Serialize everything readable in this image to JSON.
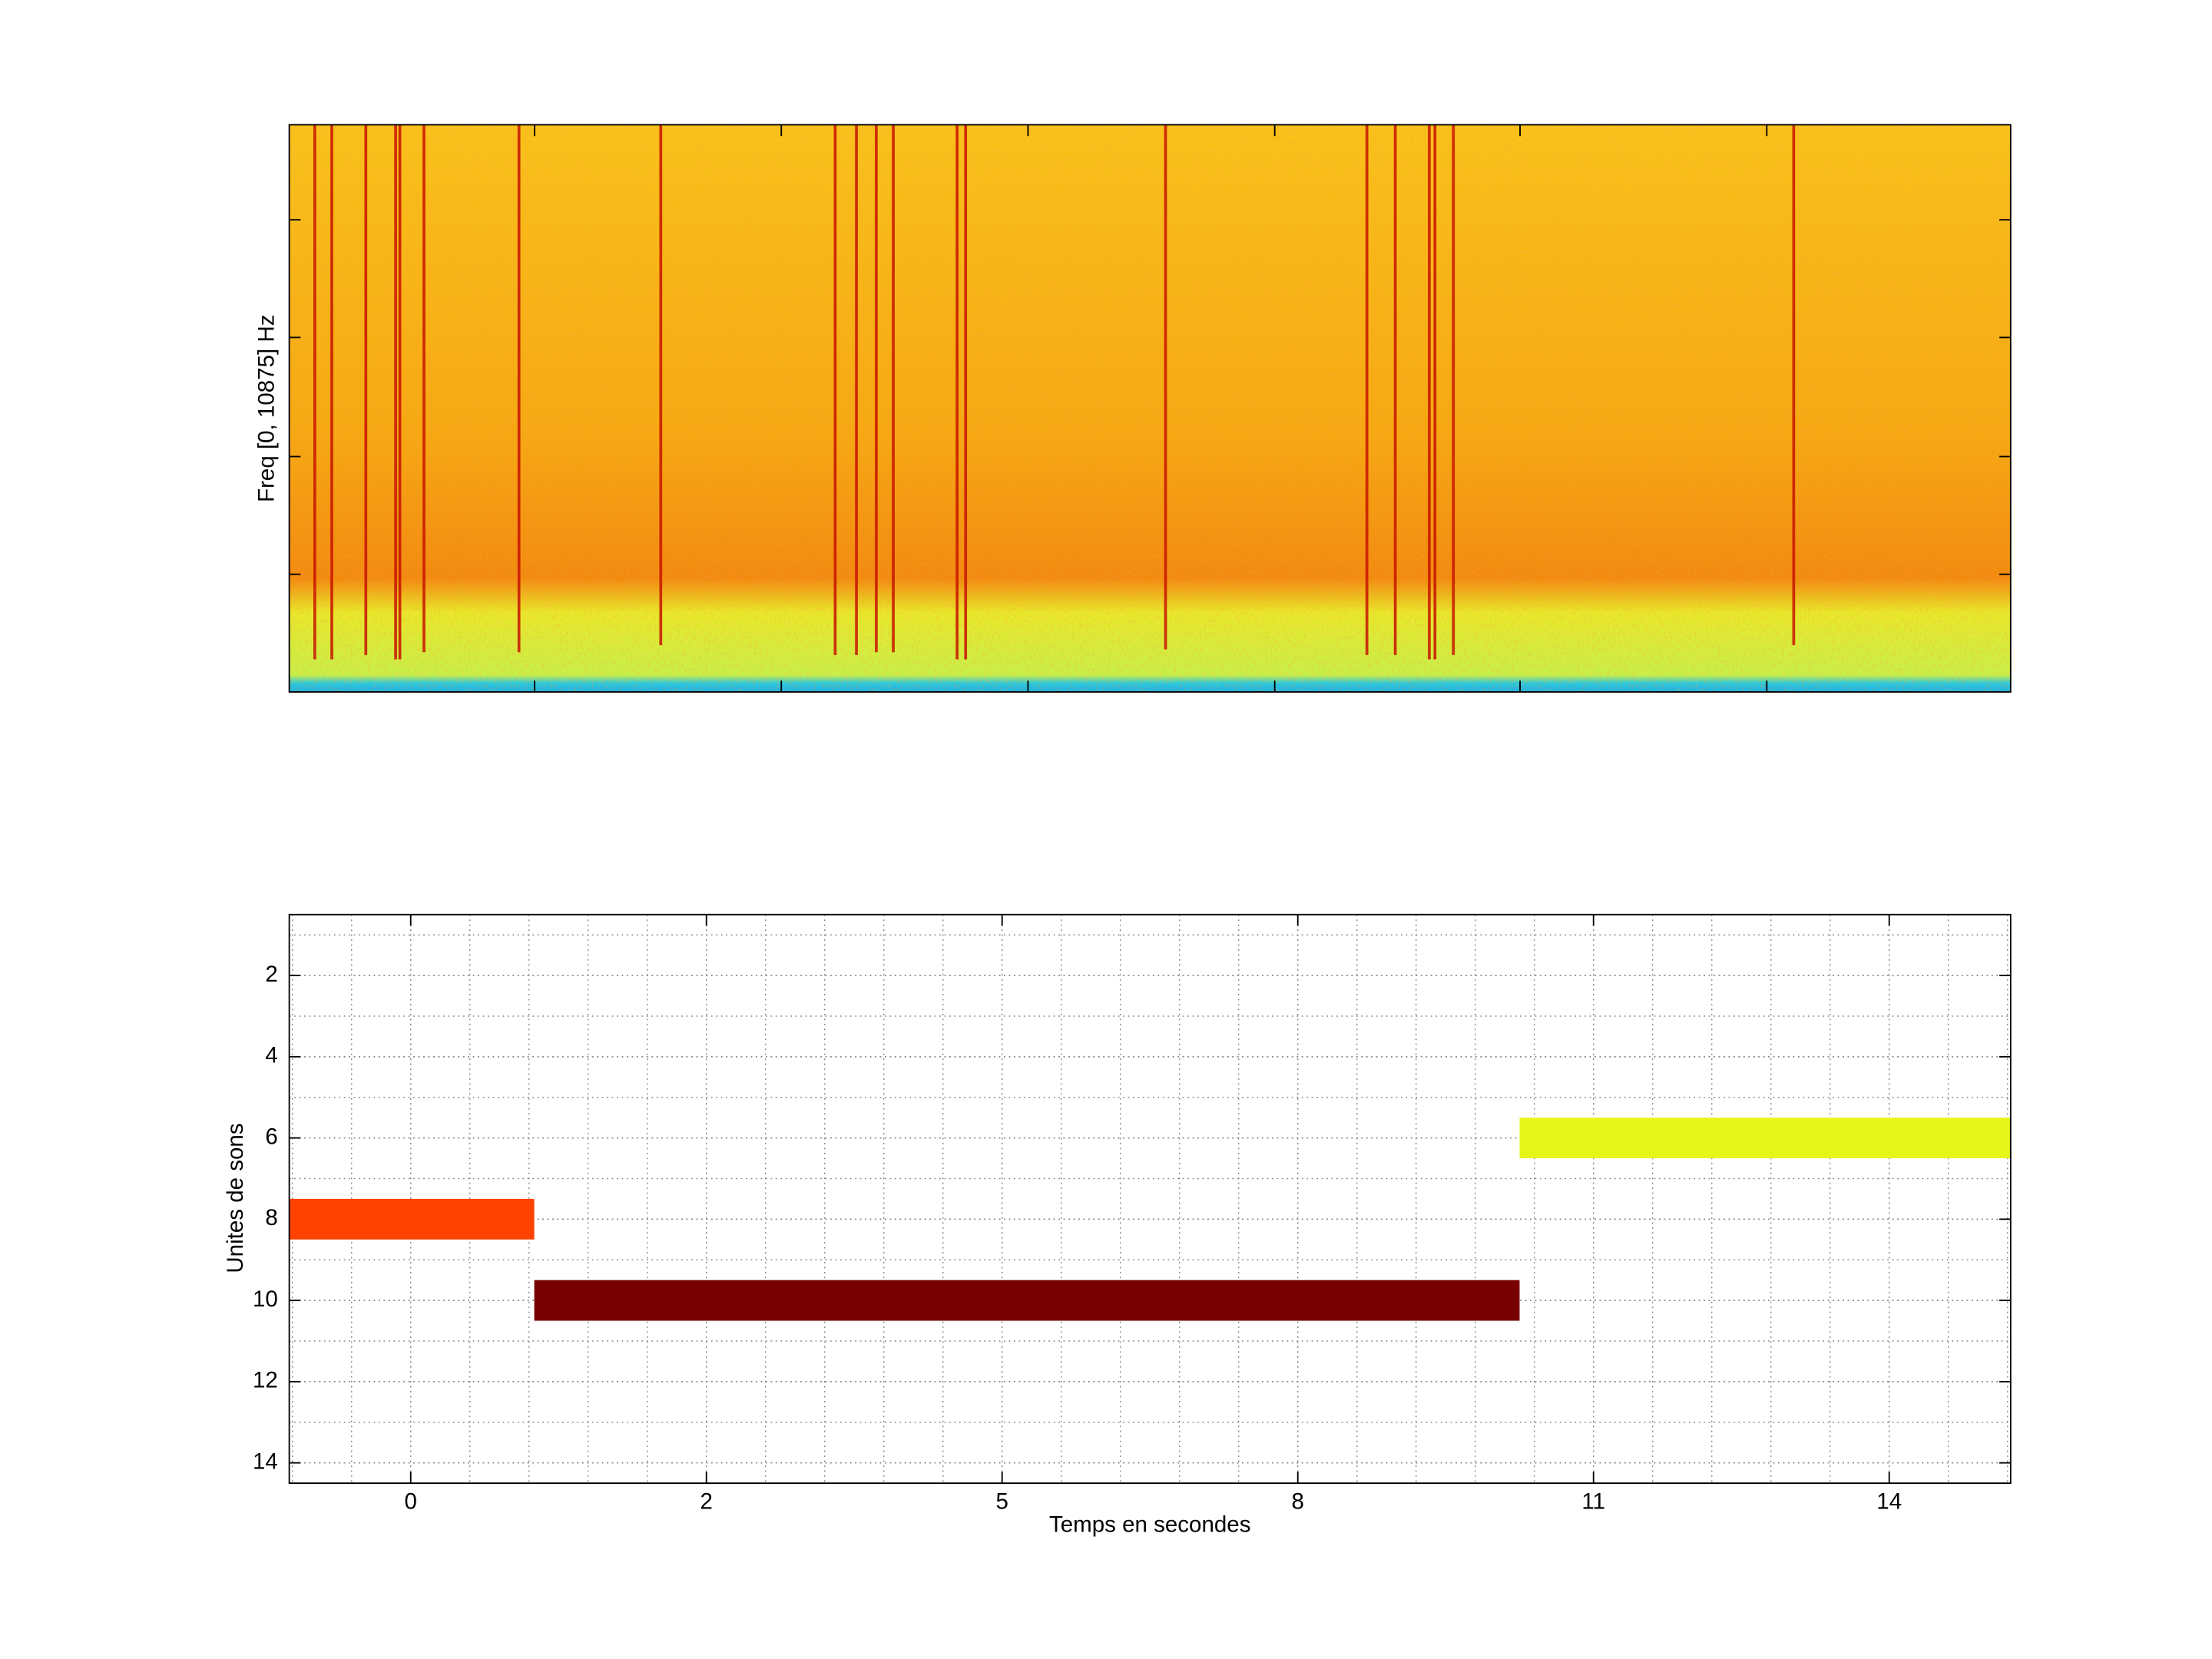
{
  "chart_data": [
    {
      "type": "spectrogram",
      "ylabel": "Freq [0, 10875] Hz"
    },
    {
      "type": "segments",
      "xlabel": "Temps en secondes",
      "ylabel": "Unites de sons",
      "xlim": [
        -1.55,
        14.75
      ],
      "ylim": [
        0.5,
        14.5
      ],
      "y_reversed": true,
      "xticks": [
        {
          "value": -0.4,
          "label": "0"
        },
        {
          "value": 2.4,
          "label": "2"
        },
        {
          "value": 5.2,
          "label": "5"
        },
        {
          "value": 8.0,
          "label": "8"
        },
        {
          "value": 10.8,
          "label": "11"
        },
        {
          "value": 13.6,
          "label": "14"
        }
      ],
      "yticks": [
        2,
        4,
        6,
        8,
        10,
        12,
        14
      ],
      "grid": true,
      "minor_grid": {
        "x": 5,
        "y": 2
      },
      "segments": [
        {
          "y": 8,
          "start": -1.55,
          "end": 0.77,
          "color": "#ff4200"
        },
        {
          "y": 10,
          "start": 0.77,
          "end": 10.1,
          "color": "#780000"
        },
        {
          "y": 6,
          "start": 10.1,
          "end": 14.75,
          "color": "#e6f51a"
        }
      ]
    }
  ]
}
